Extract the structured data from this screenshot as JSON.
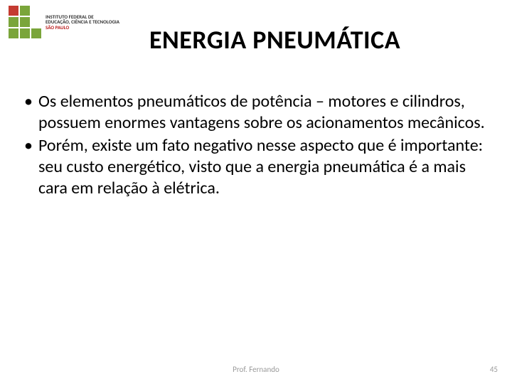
{
  "logo": {
    "squares": [
      "#c43b31",
      "#7aa53a",
      "#ffffff",
      "#7aa53a",
      "#7aa53a",
      "#ffffff",
      "#7aa53a",
      "#7aa53a",
      "#7aa53a"
    ],
    "line1": "INSTITUTO FEDERAL DE",
    "line2": "EDUCAÇÃO, CIÊNCIA E TECNOLOGIA",
    "line3": "SÃO PAULO"
  },
  "title": "ENERGIA PNEUMÁTICA",
  "bullets": [
    "Os elementos pneumáticos de potência – motores e cilindros, possuem enormes vantagens sobre os acionamentos mecânicos.",
    " Porém, existe um fato negativo nesse aspecto que é importante: seu custo energético, visto que a energia pneumática é a mais cara em relação à elétrica."
  ],
  "footer": {
    "author": "Prof. Fernando",
    "page": "45"
  },
  "style": {
    "background": "#ffffff",
    "title_color": "#000000",
    "title_fontsize": 36,
    "body_fontsize": 24,
    "body_color": "#000000",
    "footer_color": "#9a9a9a",
    "footer_fontsize": 11
  }
}
